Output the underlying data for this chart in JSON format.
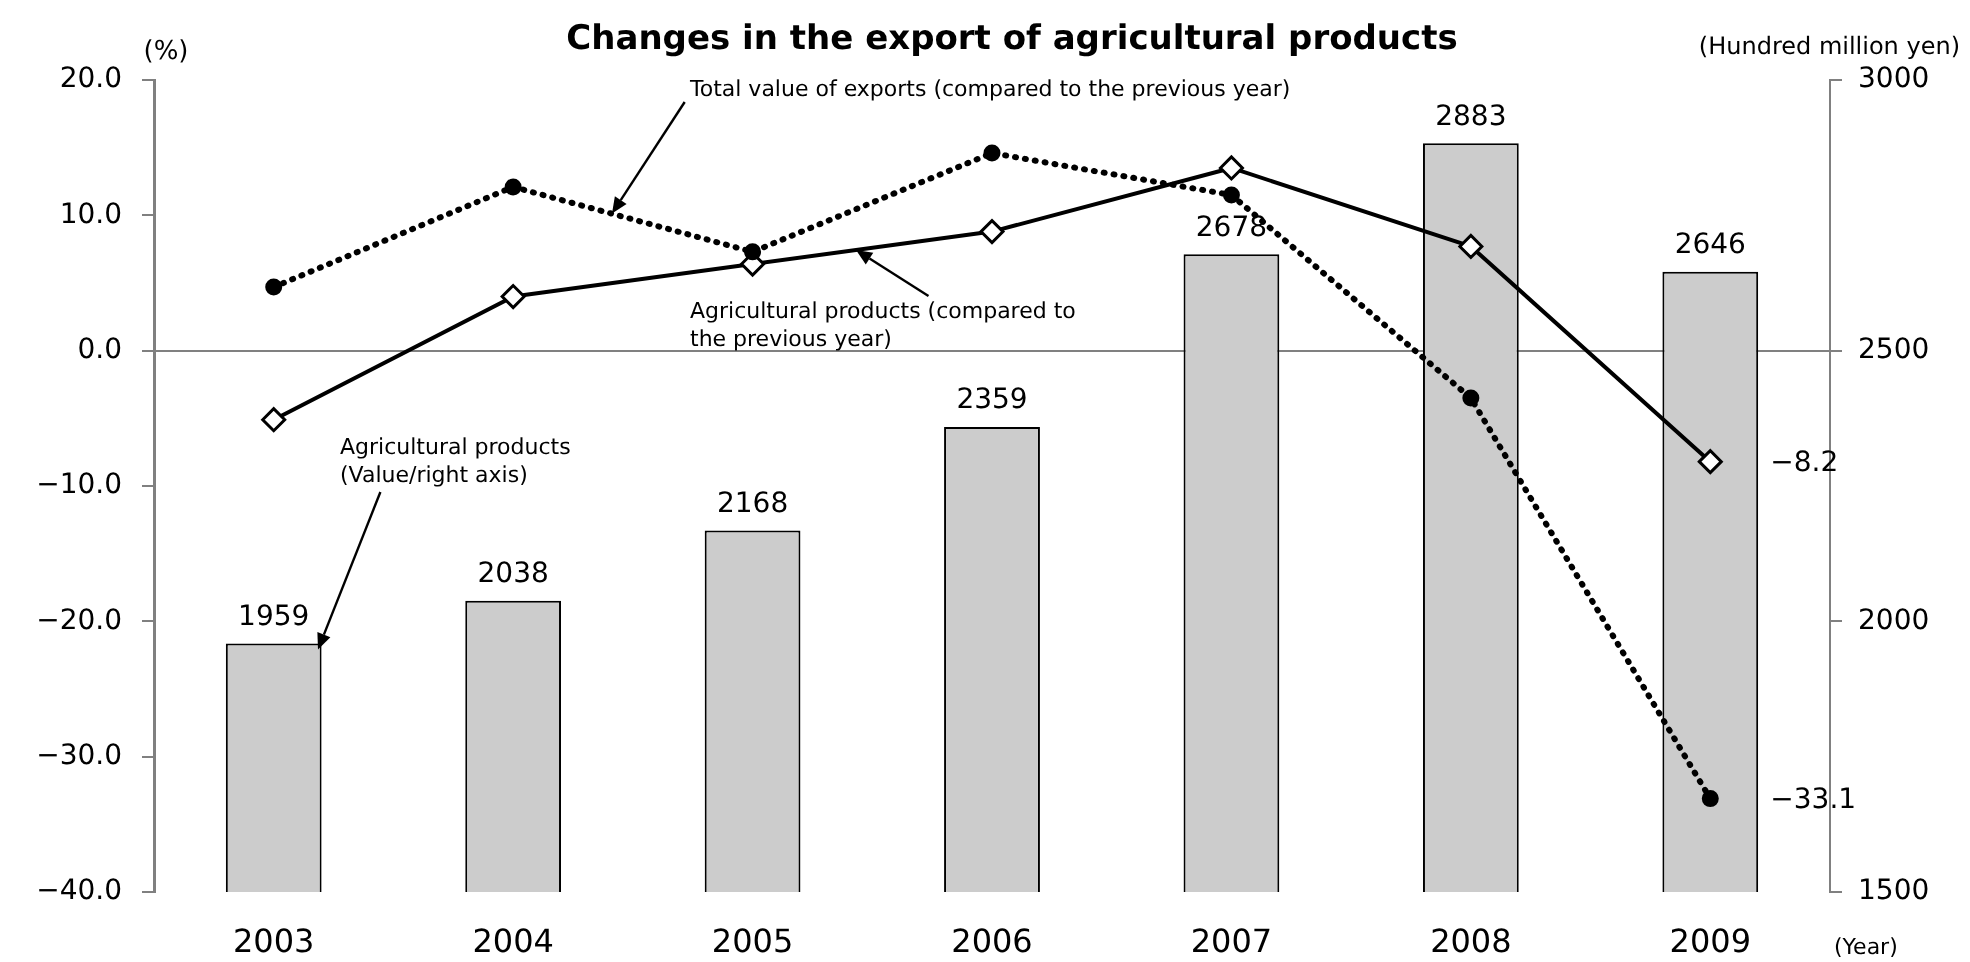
{
  "chart_data": {
    "type": "bar",
    "title": "Changes in the export of agricultural products",
    "ylabel": "(%)",
    "y2label": "(Hundred million yen)",
    "xlabel": "(Year)",
    "categories": [
      "2003",
      "2004",
      "2005",
      "2006",
      "2007",
      "2008",
      "2009"
    ],
    "series": [
      {
        "name": "Agricultural products (Value/right axis)",
        "axis": "y2",
        "color": "#cccccc",
        "values": [
          1959,
          2038,
          2168,
          2359,
          2678,
          2883,
          2646
        ],
        "value_labels": [
          "1959",
          "2038",
          "2168",
          "2359",
          "2678",
          "2883",
          "2646"
        ]
      },
      {
        "name": "Total value of exports (compared to the previous year)",
        "type": "line",
        "color": "#000000",
        "marker": "circle",
        "line_style": "dotted",
        "values": [
          4.7,
          12.1,
          7.3,
          14.6,
          11.5,
          -3.5,
          -33.1
        ],
        "value_labels": [
          null,
          null,
          null,
          null,
          null,
          null,
          "−33.1"
        ]
      },
      {
        "name": "Agricultural products (compared to the previous year)",
        "type": "line",
        "color": "#000000",
        "marker": "diamond",
        "line_style": "solid",
        "values": [
          -5.1,
          4.0,
          6.4,
          8.8,
          13.5,
          7.7,
          -8.2
        ],
        "value_labels": [
          null,
          null,
          null,
          null,
          null,
          null,
          "−8.2"
        ]
      }
    ],
    "ylim": [
      -40,
      20
    ],
    "yticks": [
      {
        "value": -40,
        "label": "−40.0"
      },
      {
        "value": -30,
        "label": "−30.0"
      },
      {
        "value": -20,
        "label": "−20.0"
      },
      {
        "value": -10,
        "label": "−10.0"
      },
      {
        "value": 0,
        "label": "0.0"
      },
      {
        "value": 10,
        "label": "10.0"
      },
      {
        "value": 20,
        "label": "20.0"
      }
    ],
    "y2lim": [
      1500,
      3000
    ],
    "y2ticks": [
      1500,
      2000,
      2500,
      3000
    ],
    "ref_lines": [
      {
        "axis": "y",
        "value": 0,
        "color": "#808080"
      }
    ]
  }
}
